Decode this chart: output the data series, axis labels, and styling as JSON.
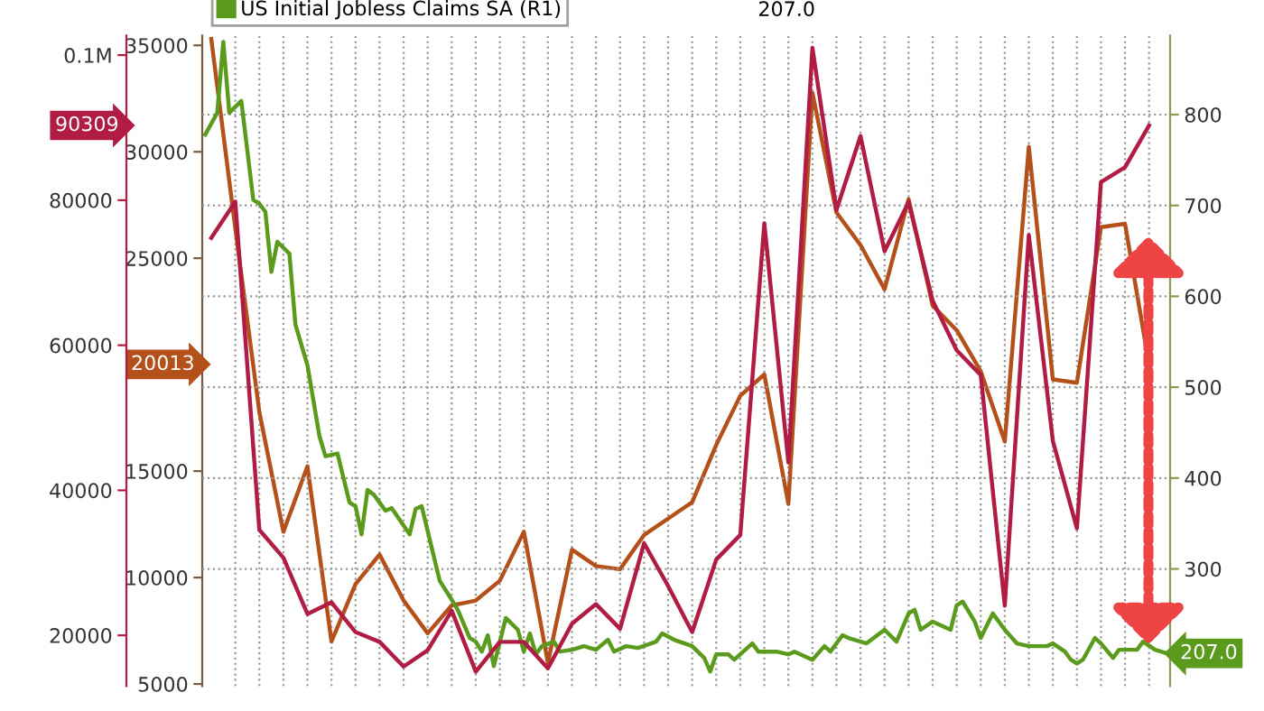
{
  "chart_data": {
    "type": "line",
    "categories": [
      null,
      null,
      null,
      null,
      null,
      null,
      null,
      null,
      null,
      null,
      null,
      null,
      null,
      null,
      null,
      null,
      null,
      null,
      null,
      null,
      null,
      null,
      null,
      null,
      null,
      null,
      null,
      null,
      null,
      null,
      null,
      null,
      null,
      null,
      null,
      null,
      null,
      null,
      null,
      null,
      null,
      null,
      null,
      null,
      null,
      null,
      null,
      null,
      null,
      null,
      null,
      null,
      null,
      null,
      null,
      null,
      null,
      null,
      null,
      null,
      null,
      null,
      null,
      null,
      null,
      null,
      null,
      null,
      null,
      null,
      null,
      null,
      null,
      null,
      null,
      null,
      null,
      null,
      null,
      null,
      null,
      null,
      null,
      null,
      null,
      null,
      null,
      null,
      null,
      null,
      null,
      null,
      null,
      null,
      null,
      null,
      null,
      null,
      null,
      null,
      null,
      null,
      null,
      null,
      null,
      null,
      null,
      null,
      null,
      null,
      null,
      null,
      null,
      null,
      null,
      null,
      null,
      null,
      null,
      null,
      null,
      null,
      null,
      null,
      null,
      null,
      null,
      null,
      null,
      null,
      null,
      null,
      null,
      null,
      null,
      null,
      null,
      null,
      null,
      null,
      null,
      null,
      null,
      null,
      null,
      null,
      null,
      null,
      null,
      null,
      null,
      null,
      null,
      null,
      null,
      null,
      null,
      null,
      null,
      null,
      null
    ],
    "ylim": [
      4900,
      35460
    ],
    "yticks": [
      5000,
      10000,
      15000,
      {
        "value": 20000,
        "label": null
      },
      25000,
      30000,
      35000
    ],
    "y2lim": [
      171,
      887
    ],
    "y2ticks": [
      300,
      400,
      500,
      600,
      700,
      800
    ],
    "y3lim": [
      13000,
      102700
    ],
    "y3ticks": [
      20000,
      40000,
      60000,
      80000,
      {
        "value": 100000,
        "label": "0.1M"
      }
    ],
    "grid": true,
    "legend": "top left",
    "line_style": "solid",
    "annotations": [
      "207.0",
      "90309",
      "20013",
      "207.0"
    ],
    "series": [
      {
        "color": "#b01c44",
        "axis": "y3",
        "values": [
          null,
          74800,
          null,
          null,
          null,
          79800,
          null,
          null,
          null,
          34550,
          null,
          null,
          null,
          30700,
          null,
          null,
          null,
          22950,
          null,
          null,
          null,
          24550,
          null,
          null,
          null,
          20450,
          null,
          null,
          null,
          19100,
          null,
          null,
          null,
          15700,
          null,
          null,
          null,
          17950,
          null,
          null,
          null,
          23400,
          null,
          null,
          null,
          15000,
          null,
          null,
          null,
          19100,
          null,
          null,
          null,
          19100,
          null,
          null,
          null,
          15450,
          null,
          null,
          null,
          21600,
          null,
          null,
          null,
          24300,
          null,
          null,
          null,
          20900,
          null,
          null,
          null,
          32700,
          null,
          null,
          null,
          26800,
          null,
          null,
          null,
          20450,
          null,
          null,
          null,
          30450,
          null,
          null,
          null,
          33850,
          null,
          null,
          null,
          76800,
          null,
          null,
          null,
          43850,
          null,
          null,
          null,
          101000,
          null,
          null,
          null,
          78650,
          null,
          null,
          null,
          88850,
          null,
          null,
          null,
          72950,
          null,
          null,
          null,
          79750,
          null,
          null,
          null,
          66150,
          null,
          null,
          null,
          59300,
          null,
          null,
          null,
          55900,
          null,
          null,
          null,
          24100,
          null,
          null,
          null,
          75200,
          null,
          null,
          null,
          46800,
          null,
          null,
          null,
          34750,
          null,
          null,
          null,
          82500,
          null,
          null,
          null,
          84550,
          null,
          null,
          null,
          90309,
          null,
          null,
          null
        ]
      },
      {
        "color": "#b4501a",
        "axis": "y",
        "values": [
          null,
          35300,
          null,
          null,
          null,
          26400,
          null,
          null,
          null,
          17770,
          null,
          null,
          null,
          12150,
          null,
          null,
          null,
          15230,
          null,
          null,
          null,
          7000,
          null,
          null,
          null,
          9690,
          null,
          null,
          null,
          11080,
          null,
          null,
          null,
          8920,
          null,
          null,
          null,
          7380,
          null,
          null,
          null,
          8690,
          null,
          null,
          null,
          8920,
          null,
          null,
          null,
          9850,
          null,
          null,
          null,
          12150,
          null,
          null,
          null,
          6000,
          null,
          null,
          null,
          11310,
          null,
          null,
          null,
          10540,
          null,
          null,
          null,
          10390,
          null,
          null,
          null,
          12000,
          null,
          null,
          null,
          12770,
          null,
          null,
          null,
          13540,
          null,
          null,
          null,
          16230,
          null,
          null,
          null,
          18540,
          null,
          null,
          null,
          19540,
          null,
          null,
          null,
          13460,
          null,
          null,
          null,
          32770,
          null,
          null,
          null,
          27150,
          null,
          null,
          null,
          25620,
          null,
          null,
          null,
          23540,
          null,
          null,
          null,
          27770,
          null,
          null,
          null,
          22770,
          null,
          null,
          null,
          21620,
          null,
          null,
          null,
          19690,
          null,
          null,
          null,
          16390,
          null,
          null,
          null,
          30230,
          null,
          null,
          null,
          19310,
          null,
          null,
          null,
          19150,
          null,
          null,
          null,
          26460,
          null,
          null,
          null,
          26620,
          null,
          null,
          null,
          20013,
          null,
          null,
          null
        ]
      },
      {
        "name": "US Initial Jobless Claims SA (R1)",
        "color": "#5a9a1c",
        "axis": "y2",
        "values": [
          778,
          null,
          802,
          880,
          802,
          null,
          815,
          null,
          706,
          702,
          693,
          627,
          660,
          null,
          647,
          569,
          null,
          524,
          null,
          446,
          424,
          null,
          427,
          null,
          373,
          369,
          338,
          387,
          382,
          null,
          364,
          367,
          null,
          null,
          338,
          366,
          369,
          null,
          null,
          287,
          null,
          266,
          255,
          null,
          224,
          220,
          209,
          227,
          193,
          null,
          246,
          null,
          233,
          209,
          229,
          206,
          215,
          null,
          220,
          209,
          null,
          211,
          null,
          215,
          null,
          211,
          null,
          222,
          209,
          null,
          215,
          null,
          213,
          null,
          null,
          220,
          229,
          null,
          222,
          null,
          null,
          215,
          null,
          202,
          187,
          206,
          null,
          206,
          200,
          null,
          null,
          218,
          209,
          null,
          null,
          209,
          null,
          206,
          209,
          null,
          null,
          200,
          null,
          215,
          209,
          null,
          227,
          224,
          null,
          null,
          218,
          null,
          null,
          233,
          null,
          220,
          null,
          251,
          255,
          233,
          null,
          242,
          null,
          null,
          233,
          260,
          264,
          null,
          242,
          224,
          null,
          251,
          null,
          233,
          null,
          218,
          null,
          215,
          null,
          null,
          215,
          218,
          null,
          209,
          200,
          196,
          200,
          null,
          224,
          218,
          null,
          202,
          211,
          null,
          null,
          211,
          220,
          null,
          211,
          null,
          207
        ]
      }
    ]
  }
}
